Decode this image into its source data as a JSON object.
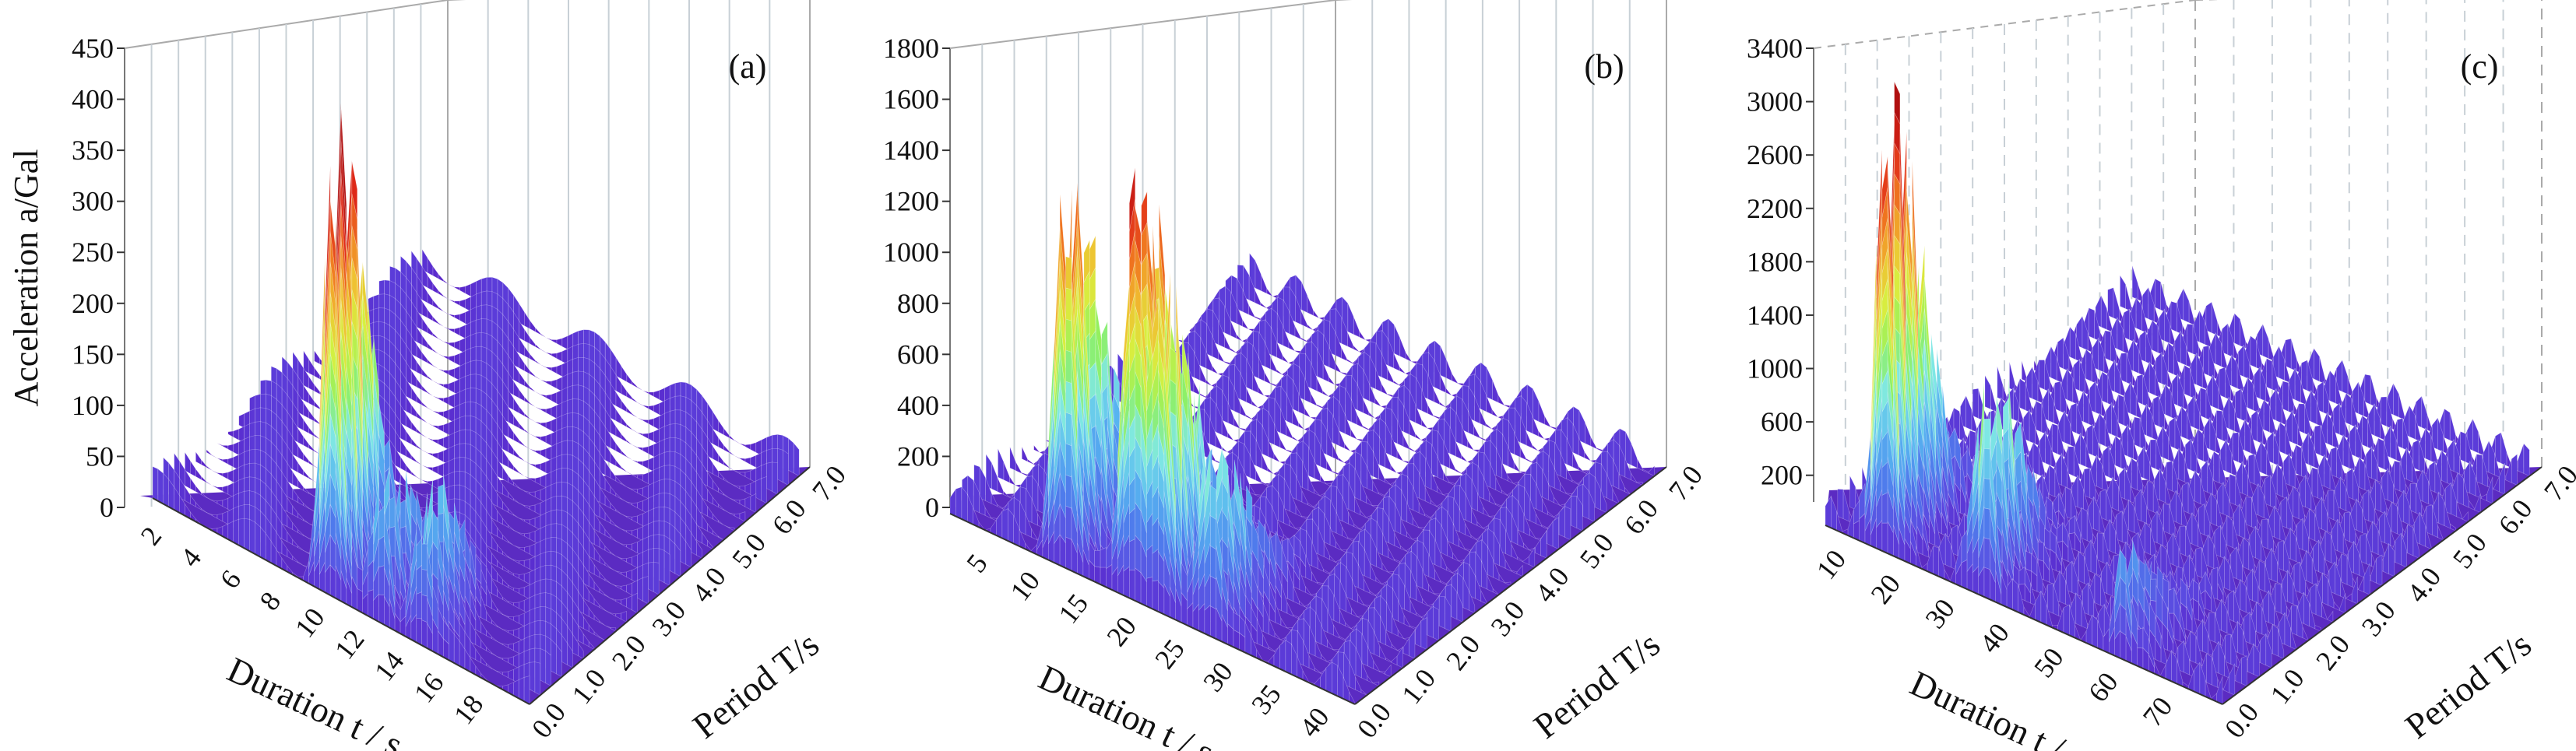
{
  "y_axis_label": "Acceleration a/Gal",
  "chart_data": [
    {
      "type": "surface3d",
      "panel_label": "(a)",
      "xlabel": "Duration t / s",
      "ylabel": "Period T/s",
      "zlabel": "Acceleration a/Gal",
      "x_ticks": [
        "2",
        "4",
        "6",
        "8",
        "10",
        "12",
        "14",
        "16",
        "18"
      ],
      "y_ticks": [
        "0.0",
        "1.0",
        "2.0",
        "3.0",
        "4.0",
        "5.0",
        "6.0",
        "7.0"
      ],
      "z_ticks": [
        "0",
        "50",
        "100",
        "150",
        "200",
        "250",
        "300",
        "350",
        "400",
        "450"
      ],
      "zlim": [
        0,
        450
      ],
      "peaks": [
        {
          "t": 10.0,
          "T": 0.3,
          "a": 415
        },
        {
          "t": 12.5,
          "T": 0.3,
          "a": 140
        },
        {
          "t": 14.5,
          "T": 0.3,
          "a": 120
        }
      ]
    },
    {
      "type": "surface3d",
      "panel_label": "(b)",
      "xlabel": "Duration t / s",
      "ylabel": "Period T/s",
      "zlabel": "",
      "x_ticks": [
        "5",
        "10",
        "15",
        "20",
        "25",
        "30",
        "35",
        "40"
      ],
      "y_ticks": [
        "0.0",
        "1.0",
        "2.0",
        "3.0",
        "4.0",
        "5.0",
        "6.0",
        "7.0"
      ],
      "z_ticks": [
        "0",
        "200",
        "400",
        "600",
        "800",
        "1000",
        "1200",
        "1400",
        "1600",
        "1800"
      ],
      "zlim": [
        0,
        1800
      ],
      "peaks": [
        {
          "t": 12.0,
          "T": 0.2,
          "a": 1550
        },
        {
          "t": 19.0,
          "T": 0.2,
          "a": 1600
        },
        {
          "t": 22.0,
          "T": 0.2,
          "a": 1180
        },
        {
          "t": 27.0,
          "T": 0.2,
          "a": 720
        }
      ]
    },
    {
      "type": "surface3d",
      "panel_label": "(c)",
      "xlabel": "Duration t / s",
      "ylabel": "Period T/s",
      "zlabel": "",
      "x_ticks": [
        "10",
        "20",
        "30",
        "40",
        "50",
        "60",
        "70"
      ],
      "y_ticks": [
        "0.0",
        "1.0",
        "2.0",
        "3.0",
        "4.0",
        "5.0",
        "6.0",
        "7.0"
      ],
      "z_ticks": [
        "200",
        "600",
        "1000",
        "1400",
        "1800",
        "2200",
        "2600",
        "3000",
        "3400"
      ],
      "zlim": [
        0,
        3400
      ],
      "peaks": [
        {
          "t": 16.0,
          "T": 0.2,
          "a": 3150
        },
        {
          "t": 34.0,
          "T": 0.2,
          "a": 1400
        },
        {
          "t": 60.0,
          "T": 0.2,
          "a": 650
        }
      ]
    }
  ],
  "colormap": [
    "#5a22c8",
    "#5b47e0",
    "#4f7bec",
    "#57b5f0",
    "#7fe8e4",
    "#8ef060",
    "#d6f040",
    "#f0c030",
    "#f07a20",
    "#e02a18",
    "#b01010"
  ]
}
